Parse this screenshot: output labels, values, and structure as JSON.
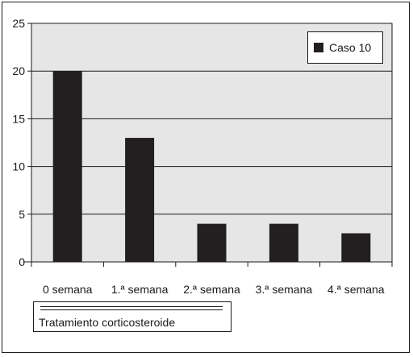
{
  "chart_data": {
    "type": "bar",
    "categories": [
      "0 semana",
      "1.ª semana",
      "2.ª semana",
      "3.ª semana",
      "4.ª semana"
    ],
    "series": [
      {
        "name": "Caso 10",
        "values": [
          20,
          13,
          4,
          4,
          3
        ]
      }
    ],
    "ylim": [
      0,
      25
    ],
    "yticks": [
      "0",
      "5",
      "10",
      "15",
      "20",
      "25"
    ],
    "grid": true,
    "legend_position": "top-right",
    "group_label": "Tratamiento corticosteroide",
    "colors": {
      "bar": "#231f20",
      "plot_background": "#e6e6e6",
      "grid": "#1a1a1a"
    }
  }
}
